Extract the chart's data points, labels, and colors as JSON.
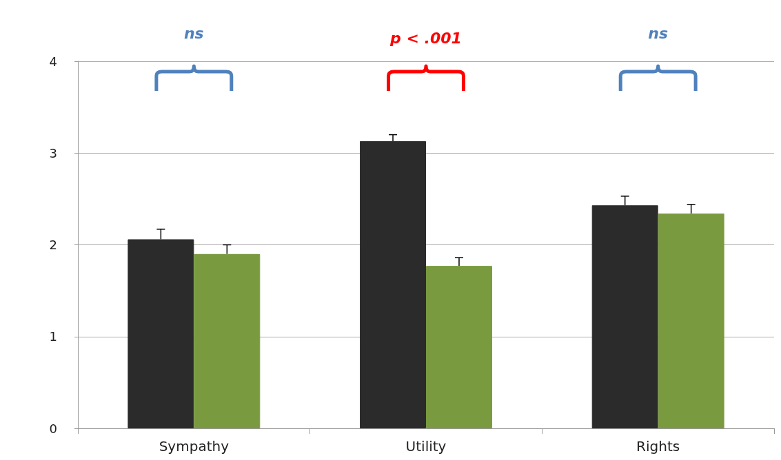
{
  "chart_data": {
    "type": "bar",
    "categories": [
      "Sympathy",
      "Utility",
      "Rights"
    ],
    "series": [
      {
        "color": "#2b2b2b",
        "values": [
          2.06,
          3.13,
          2.43
        ],
        "errors": [
          [
            2.06,
            2.17
          ],
          [
            3.13,
            3.2
          ],
          [
            2.43,
            2.53
          ]
        ]
      },
      {
        "color": "#7a9a40",
        "values": [
          1.9,
          1.77,
          2.34
        ],
        "errors": [
          [
            1.9,
            2.0
          ],
          [
            1.77,
            1.86
          ],
          [
            2.34,
            2.44
          ]
        ]
      }
    ],
    "ylim": [
      0,
      4
    ],
    "yticks": [
      0,
      1,
      2,
      3,
      4
    ],
    "grid": "y",
    "annotations": [
      "ns",
      "p < .001",
      "ns"
    ]
  }
}
